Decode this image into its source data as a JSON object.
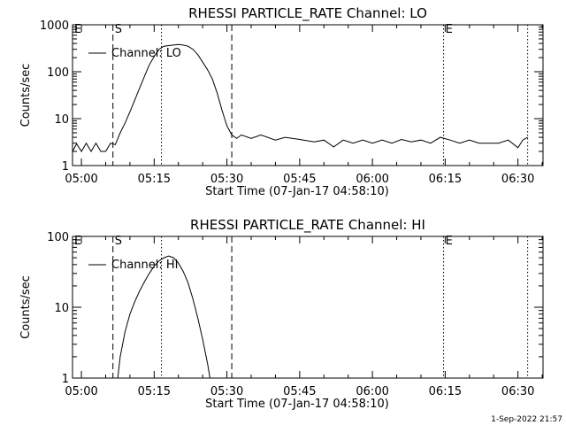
{
  "footer_stamp": "1-Sep-2022 21:57",
  "chart_data": [
    {
      "type": "line",
      "title": "RHESSI PARTICLE_RATE Channel: LO",
      "xlabel": "Start Time (07-Jan-17 04:58:10)",
      "ylabel": "Counts/sec",
      "yscale": "log",
      "ylim": [
        1,
        1000
      ],
      "xlim_minutes_after_start": [
        0,
        97
      ],
      "xtick_labels": [
        "05:00",
        "05:15",
        "05:30",
        "05:45",
        "06:00",
        "06:15",
        "06:30"
      ],
      "ytick_labels": [
        "1",
        "10",
        "100",
        "1000"
      ],
      "legend": "Channel: LO",
      "markers": [
        {
          "label": "E",
          "time": "04:58:10",
          "style": "dotted"
        },
        {
          "label": "S",
          "time": "05:06:30",
          "style": "dashed"
        },
        {
          "label": "",
          "time": "05:16:30",
          "style": "dotted"
        },
        {
          "label": "",
          "time": "05:31:00",
          "style": "dashed"
        },
        {
          "label": "E",
          "time": "06:14:40",
          "style": "dotted"
        },
        {
          "label": "",
          "time": "06:32:00",
          "style": "dotted"
        }
      ],
      "series": [
        {
          "name": "Channel: LO",
          "points": [
            [
              "04:58:10",
              2.0
            ],
            [
              "04:59:00",
              2.9
            ],
            [
              "05:00:00",
              2.0
            ],
            [
              "05:01:00",
              3.0
            ],
            [
              "05:02:00",
              2.0
            ],
            [
              "05:03:00",
              3.0
            ],
            [
              "05:04:00",
              2.0
            ],
            [
              "05:05:00",
              2.0
            ],
            [
              "05:06:00",
              3.0
            ],
            [
              "05:07:00",
              2.8
            ],
            [
              "05:08:00",
              5.0
            ],
            [
              "05:09:00",
              8.0
            ],
            [
              "05:10:00",
              14
            ],
            [
              "05:11:00",
              25
            ],
            [
              "05:12:00",
              45
            ],
            [
              "05:13:00",
              80
            ],
            [
              "05:14:00",
              140
            ],
            [
              "05:15:00",
              210
            ],
            [
              "05:16:00",
              300
            ],
            [
              "05:17:00",
              350
            ],
            [
              "05:18:00",
              360
            ],
            [
              "05:19:00",
              370
            ],
            [
              "05:20:00",
              380
            ],
            [
              "05:21:00",
              370
            ],
            [
              "05:22:00",
              350
            ],
            [
              "05:23:00",
              300
            ],
            [
              "05:24:00",
              230
            ],
            [
              "05:25:00",
              160
            ],
            [
              "05:26:00",
              110
            ],
            [
              "05:27:00",
              70
            ],
            [
              "05:28:00",
              35
            ],
            [
              "05:29:00",
              15
            ],
            [
              "05:30:00",
              7
            ],
            [
              "05:31:00",
              4.5
            ],
            [
              "05:32:00",
              3.8
            ],
            [
              "05:33:00",
              4.5
            ],
            [
              "05:35:00",
              3.8
            ],
            [
              "05:37:00",
              4.5
            ],
            [
              "05:40:00",
              3.5
            ],
            [
              "05:42:00",
              4.0
            ],
            [
              "05:45:00",
              3.6
            ],
            [
              "05:48:00",
              3.2
            ],
            [
              "05:50:00",
              3.5
            ],
            [
              "05:52:00",
              2.5
            ],
            [
              "05:54:00",
              3.5
            ],
            [
              "05:56:00",
              3.0
            ],
            [
              "05:58:00",
              3.5
            ],
            [
              "06:00:00",
              3.0
            ],
            [
              "06:02:00",
              3.5
            ],
            [
              "06:04:00",
              3.0
            ],
            [
              "06:06:00",
              3.6
            ],
            [
              "06:08:00",
              3.2
            ],
            [
              "06:10:00",
              3.5
            ],
            [
              "06:12:00",
              3.0
            ],
            [
              "06:14:00",
              4.0
            ],
            [
              "06:16:00",
              3.5
            ],
            [
              "06:18:00",
              3.0
            ],
            [
              "06:20:00",
              3.5
            ],
            [
              "06:22:00",
              3.0
            ],
            [
              "06:24:00",
              3.0
            ],
            [
              "06:26:00",
              3.0
            ],
            [
              "06:28:00",
              3.5
            ],
            [
              "06:30:00",
              2.4
            ],
            [
              "06:31:00",
              3.5
            ],
            [
              "06:32:00",
              4.0
            ]
          ]
        }
      ]
    },
    {
      "type": "line",
      "title": "RHESSI PARTICLE_RATE Channel: HI",
      "xlabel": "Start Time (07-Jan-17 04:58:10)",
      "ylabel": "Counts/sec",
      "yscale": "log",
      "ylim": [
        1,
        100
      ],
      "xlim_minutes_after_start": [
        0,
        97
      ],
      "xtick_labels": [
        "05:00",
        "05:15",
        "05:30",
        "05:45",
        "06:00",
        "06:15",
        "06:30"
      ],
      "ytick_labels": [
        "1",
        "10",
        "100"
      ],
      "legend": "Channel: HI",
      "markers": [
        {
          "label": "E",
          "time": "04:58:10",
          "style": "dotted"
        },
        {
          "label": "S",
          "time": "05:06:30",
          "style": "dashed"
        },
        {
          "label": "",
          "time": "05:16:30",
          "style": "dotted"
        },
        {
          "label": "",
          "time": "05:31:00",
          "style": "dashed"
        },
        {
          "label": "E",
          "time": "06:14:40",
          "style": "dotted"
        },
        {
          "label": "",
          "time": "06:32:00",
          "style": "dotted"
        }
      ],
      "series": [
        {
          "name": "Channel: HI",
          "points": [
            [
              "05:07:30",
              1.0
            ],
            [
              "05:08:00",
              2.0
            ],
            [
              "05:09:00",
              4.5
            ],
            [
              "05:10:00",
              8.0
            ],
            [
              "05:11:00",
              12
            ],
            [
              "05:12:00",
              17
            ],
            [
              "05:13:00",
              23
            ],
            [
              "05:14:00",
              30
            ],
            [
              "05:15:00",
              38
            ],
            [
              "05:16:00",
              45
            ],
            [
              "05:17:00",
              50
            ],
            [
              "05:18:00",
              53
            ],
            [
              "05:19:00",
              50
            ],
            [
              "05:20:00",
              42
            ],
            [
              "05:21:00",
              32
            ],
            [
              "05:22:00",
              22
            ],
            [
              "05:23:00",
              13
            ],
            [
              "05:24:00",
              7
            ],
            [
              "05:25:00",
              3.5
            ],
            [
              "05:26:00",
              1.6
            ],
            [
              "05:26:30",
              1.0
            ]
          ]
        }
      ]
    }
  ]
}
